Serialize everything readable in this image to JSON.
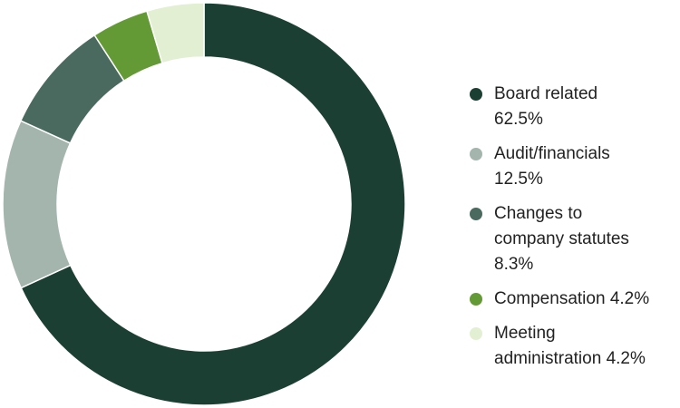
{
  "chart_data": {
    "type": "donut",
    "categories": [
      "Board related",
      "Audit/financials",
      "Changes to company statutes",
      "Compensation",
      "Meeting administration"
    ],
    "values": [
      62.5,
      12.5,
      8.3,
      4.2,
      4.2
    ],
    "value_labels": [
      "62.5%",
      "12.5%",
      "8.3%",
      "4.2%",
      "4.2%"
    ],
    "colors": [
      "#1b3f33",
      "#a3b5ad",
      "#4a6a5f",
      "#649a35",
      "#e2efd2"
    ],
    "legend": "right"
  }
}
